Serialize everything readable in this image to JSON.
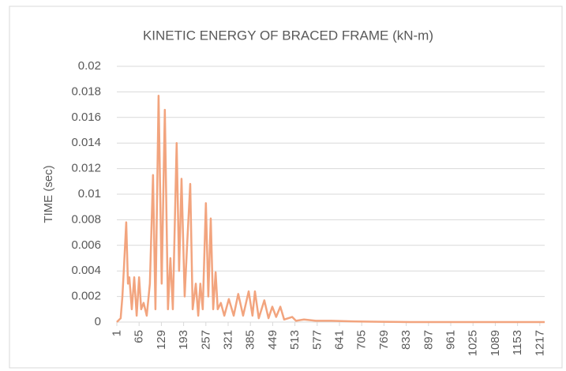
{
  "chart_data": {
    "type": "line",
    "title": "KINETIC ENERGY OF BRACED FRAME (kN-m)",
    "y_label": "TIME (sec)",
    "x": [
      1,
      12,
      17,
      21,
      28,
      33,
      37,
      44,
      51,
      58,
      65,
      71,
      78,
      87,
      96,
      105,
      112,
      121,
      130,
      139,
      148,
      155,
      162,
      173,
      180,
      187,
      196,
      203,
      212,
      219,
      228,
      235,
      241,
      248,
      257,
      264,
      271,
      278,
      285,
      291,
      300,
      310,
      323,
      337,
      350,
      364,
      380,
      391,
      398,
      409,
      425,
      437,
      448,
      459,
      471,
      482,
      505,
      516,
      539,
      573,
      618,
      686,
      754,
      845,
      1026,
      1231
    ],
    "series": [
      {
        "name": "Kinetic energy",
        "color": "#f2a47e",
        "values": [
          0,
          0.0003,
          0.002,
          0.004,
          0.0078,
          0.003,
          0.0035,
          0.001,
          0.0035,
          0.0005,
          0.0035,
          0.001,
          0.0015,
          0.0005,
          0.003,
          0.0115,
          0.001,
          0.0177,
          0.003,
          0.0166,
          0.001,
          0.005,
          0.001,
          0.014,
          0.004,
          0.0112,
          0.002,
          0.006,
          0.0108,
          0.001,
          0.003,
          0.0005,
          0.003,
          0.001,
          0.0093,
          0.002,
          0.0081,
          0.001,
          0.0039,
          0.001,
          0.0015,
          0.0005,
          0.0018,
          0.0005,
          0.0022,
          0.0005,
          0.0024,
          0.0005,
          0.0024,
          0.0003,
          0.0017,
          0.0003,
          0.0012,
          0.0004,
          0.0012,
          0.0002,
          0.0004,
          0.0001,
          0.0002,
          0.0001,
          0.0001,
          5e-05,
          2e-05,
          0,
          0,
          0
        ]
      }
    ],
    "xlim": [
      1,
      1231
    ],
    "xticks": [
      1,
      65,
      129,
      193,
      257,
      321,
      385,
      449,
      513,
      577,
      641,
      705,
      769,
      833,
      897,
      961,
      1025,
      1089,
      1153,
      1217
    ],
    "ylim": [
      0,
      0.02
    ],
    "yticks": [
      0,
      0.002,
      0.004,
      0.006,
      0.008,
      0.01,
      0.012,
      0.014,
      0.016,
      0.018,
      0.02
    ],
    "grid": true
  }
}
